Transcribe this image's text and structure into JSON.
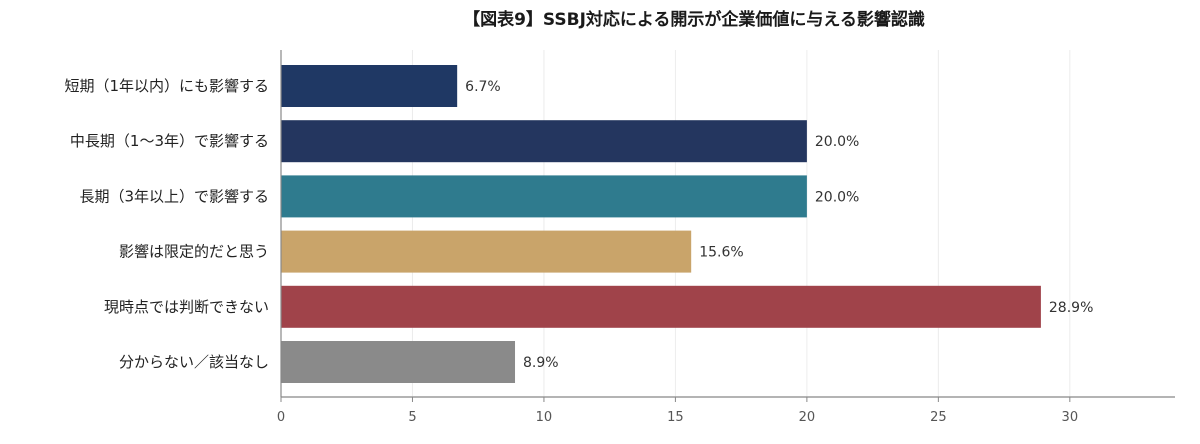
{
  "chart_data": {
    "type": "bar",
    "orientation": "horizontal",
    "title": "【図表9】SSBJ対応による開示が企業価値に与える影響認識",
    "xlabel": "",
    "ylabel": "",
    "xlim": [
      0,
      34
    ],
    "xticks": [
      0,
      5,
      10,
      15,
      20,
      25,
      30
    ],
    "grid": true,
    "categories": [
      "短期（1年以内）にも影響する",
      "中長期（1〜3年）で影響する",
      "長期（3年以上）で影響する",
      "影響は限定的だと思う",
      "現時点では判断できない",
      "分からない／該当なし"
    ],
    "values": [
      6.7,
      20.0,
      20.0,
      15.6,
      28.9,
      8.9
    ],
    "value_labels": [
      "6.7%",
      "20.0%",
      "20.0%",
      "15.6%",
      "28.9%",
      "8.9%"
    ],
    "colors": [
      "#1f3864",
      "#24365f",
      "#2f7b8e",
      "#c9a46a",
      "#a0434a",
      "#8a8a8a"
    ]
  }
}
